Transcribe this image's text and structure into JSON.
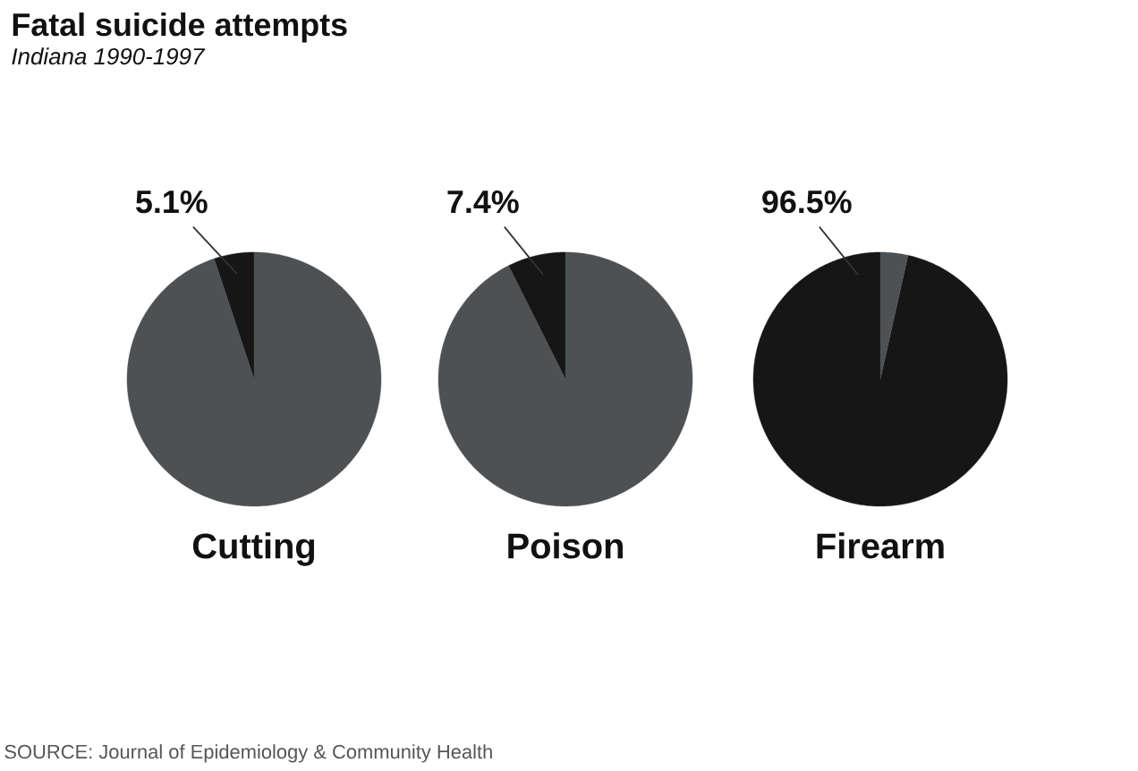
{
  "chart_data": [
    {
      "type": "other",
      "title": "Fatal suicide attempts",
      "subtitle": "Indiana 1990-1997",
      "annotations": [
        "SOURCE: Journal of Epidemiology & Community Health"
      ]
    },
    {
      "type": "pie",
      "title": "Cutting",
      "categories": [
        null,
        null
      ],
      "values": [
        5.1,
        94.9
      ],
      "colors": [
        "#161616",
        "#4d5154"
      ],
      "value_labels": [
        "5.1%",
        null
      ]
    },
    {
      "type": "pie",
      "title": "Poison",
      "categories": [
        null,
        null
      ],
      "values": [
        7.4,
        92.6
      ],
      "colors": [
        "#161616",
        "#4d5154"
      ],
      "value_labels": [
        "7.4%",
        null
      ]
    },
    {
      "type": "pie",
      "title": "Firearm",
      "categories": [
        null,
        null
      ],
      "values": [
        96.5,
        3.5
      ],
      "colors": [
        "#161616",
        "#4d5154"
      ],
      "value_labels": [
        "96.5%",
        null
      ]
    }
  ]
}
